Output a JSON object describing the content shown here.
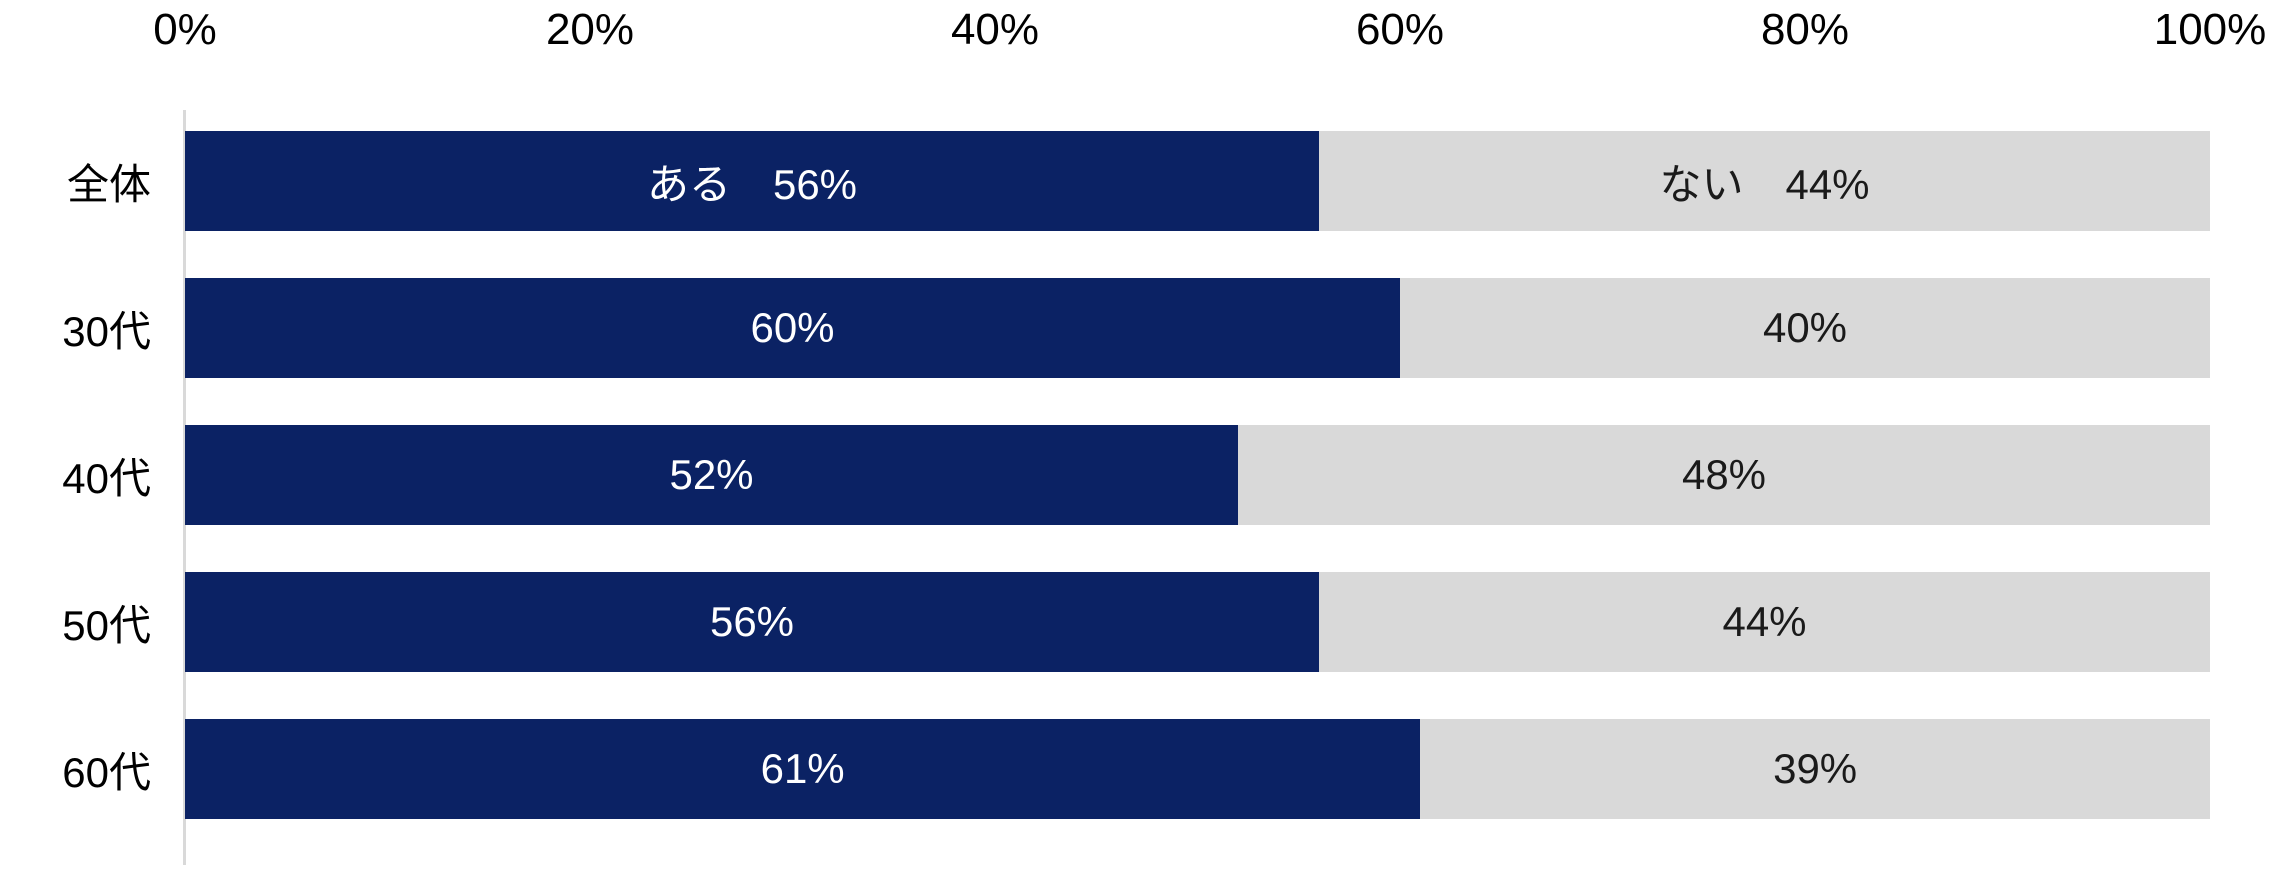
{
  "chart_data": {
    "type": "bar",
    "orientation": "horizontal",
    "stacked": true,
    "title": "",
    "categories": [
      "全体",
      "30代",
      "40代",
      "50代",
      "60代"
    ],
    "series": [
      {
        "name": "ある",
        "color": "#0B2264",
        "values": [
          56,
          60,
          52,
          56,
          61
        ]
      },
      {
        "name": "ない",
        "color": "#D9D9D9",
        "values": [
          44,
          40,
          48,
          44,
          39
        ]
      }
    ],
    "x_axis": {
      "position": "top",
      "range": [
        0,
        100
      ],
      "grid": false,
      "ticks": [
        "0%",
        "20%",
        "40%",
        "60%",
        "80%",
        "100%"
      ]
    },
    "legend": "none (series names shown inside first bar)",
    "bar_labels": [
      {
        "aru": "ある　56%",
        "nai": "ない　44%"
      },
      {
        "aru": "60%",
        "nai": "40%"
      },
      {
        "aru": "52%",
        "nai": "48%"
      },
      {
        "aru": "56%",
        "nai": "44%"
      },
      {
        "aru": "61%",
        "nai": "39%"
      }
    ],
    "colors": {
      "bar_primary": "#0B2264",
      "bar_secondary": "#D9D9D9",
      "axis_line": "#D9D9D9",
      "axis_text": "#000000",
      "label_on_primary": "#FFFFFF",
      "label_on_secondary": "#1A1A1A"
    }
  }
}
